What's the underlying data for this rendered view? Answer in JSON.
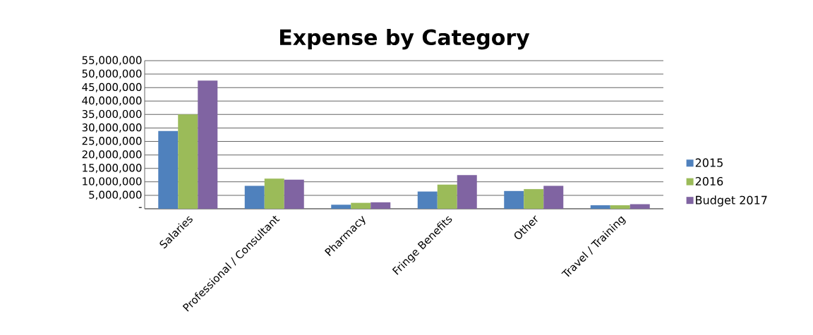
{
  "chart_data": {
    "type": "bar",
    "title": "Expense by Category",
    "categories": [
      "Salaries",
      "Professional / Consultant",
      "Pharmacy",
      "Fringe Benefits",
      "Other",
      "Travel / Training"
    ],
    "series": [
      {
        "name": "2015",
        "color": "#4f81bd",
        "values": [
          28900000,
          8500000,
          1500000,
          6400000,
          6600000,
          1300000
        ]
      },
      {
        "name": "2016",
        "color": "#9bbb59",
        "values": [
          35000000,
          11200000,
          2200000,
          9000000,
          7300000,
          1300000
        ]
      },
      {
        "name": "Budget 2017",
        "color": "#8064a2",
        "values": [
          47600000,
          10800000,
          2400000,
          12500000,
          8500000,
          1700000
        ]
      }
    ],
    "ylim": [
      0,
      55000000
    ],
    "yticks": [
      {
        "value": 0,
        "label": "-"
      },
      {
        "value": 5000000,
        "label": "5,000,000"
      },
      {
        "value": 10000000,
        "label": "10,000,000"
      },
      {
        "value": 15000000,
        "label": "15,000,000"
      },
      {
        "value": 20000000,
        "label": "20,000,000"
      },
      {
        "value": 25000000,
        "label": "25,000,000"
      },
      {
        "value": 30000000,
        "label": "30,000,000"
      },
      {
        "value": 35000000,
        "label": "35,000,000"
      },
      {
        "value": 40000000,
        "label": "40,000,000"
      },
      {
        "value": 45000000,
        "label": "45,000,000"
      },
      {
        "value": 50000000,
        "label": "50,000,000"
      },
      {
        "value": 55000000,
        "label": "55,000,000"
      }
    ],
    "grid": "y",
    "legend": "right"
  }
}
